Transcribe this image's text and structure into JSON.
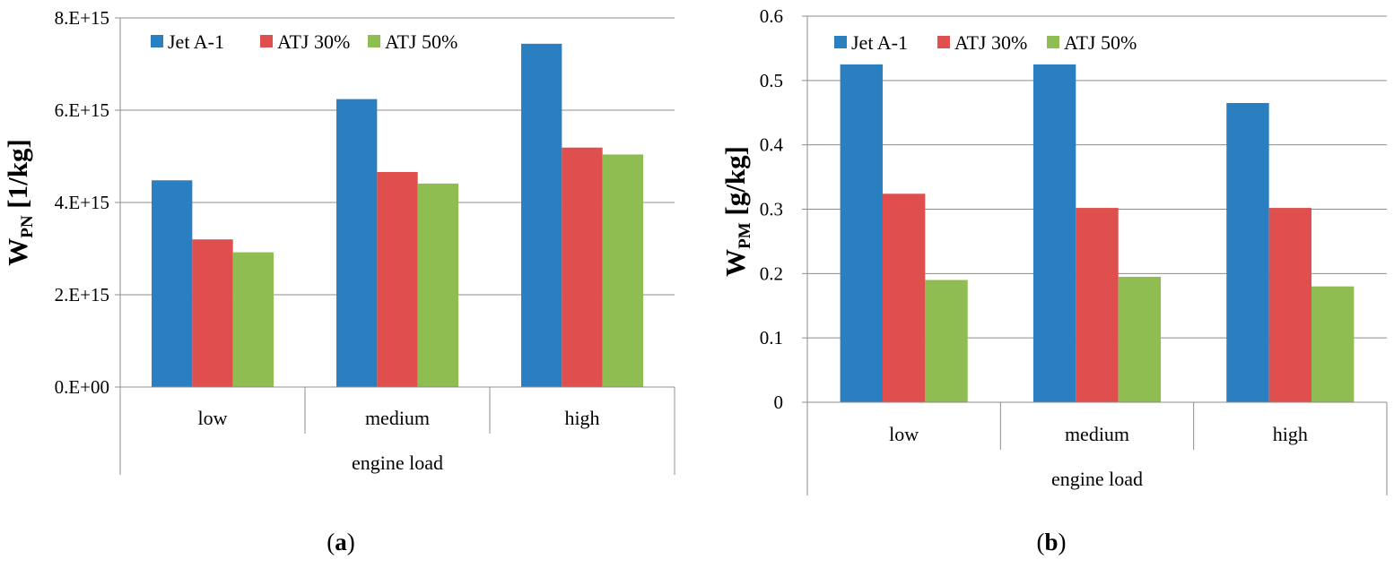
{
  "chart_data": [
    {
      "type": "bar",
      "panel_label": "a",
      "title": "",
      "xlabel": "engine load",
      "ylabel_main": "W",
      "ylabel_sub": "PN",
      "ylabel_unit": " [1/kg]",
      "categories": [
        "low",
        "medium",
        "high"
      ],
      "series": [
        {
          "name": "Jet A-1",
          "color": "#2a7fc1",
          "values": [
            4480000000000000.0,
            6240000000000000.0,
            7440000000000000.0
          ]
        },
        {
          "name": "ATJ 30%",
          "color": "#de4f4d",
          "values": [
            3200000000000000.0,
            4660000000000000.0,
            5190000000000000.0
          ]
        },
        {
          "name": "ATJ 50%",
          "color": "#8fbd51",
          "values": [
            2920000000000000.0,
            4410000000000000.0,
            5040000000000000.0
          ]
        }
      ],
      "ylim": [
        0,
        8000000000000000.0
      ],
      "yticks": [
        "0.E+00",
        "2.E+15",
        "4.E+15",
        "6.E+15",
        "8.E+15"
      ],
      "grid": true,
      "legend": "top"
    },
    {
      "type": "bar",
      "panel_label": "b",
      "title": "",
      "xlabel": "engine load",
      "ylabel_main": "W",
      "ylabel_sub": "PM",
      "ylabel_unit": " [g/kg]",
      "categories": [
        "low",
        "medium",
        "high"
      ],
      "series": [
        {
          "name": "Jet A-1",
          "color": "#2a7fc1",
          "values": [
            0.525,
            0.525,
            0.465
          ]
        },
        {
          "name": "ATJ 30%",
          "color": "#de4f4d",
          "values": [
            0.324,
            0.302,
            0.302
          ]
        },
        {
          "name": "ATJ 50%",
          "color": "#8fbd51",
          "values": [
            0.19,
            0.195,
            0.18
          ]
        }
      ],
      "ylim": [
        0,
        0.6
      ],
      "yticks": [
        "0",
        "0.1",
        "0.2",
        "0.3",
        "0.4",
        "0.5",
        "0.6"
      ],
      "grid": true,
      "legend": "top"
    }
  ]
}
